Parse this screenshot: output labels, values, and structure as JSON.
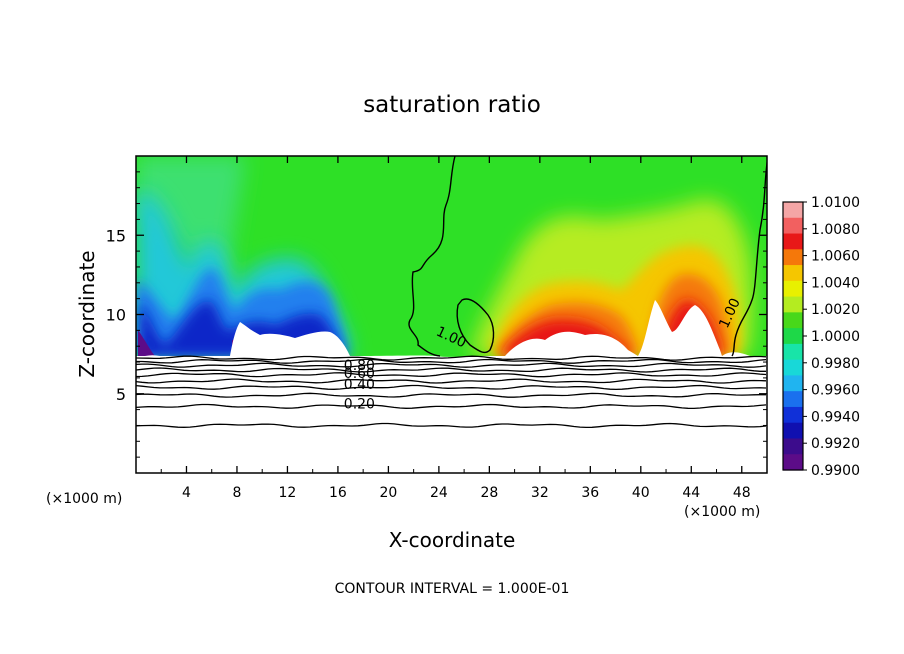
{
  "chart_data": {
    "type": "heatmap",
    "title": "saturation ratio",
    "xlabel": "X-coordinate",
    "ylabel": "Z-coordinate",
    "x_unit": "(×1000 m)",
    "z_unit": "(×1000 m)",
    "xlim": [
      0,
      50
    ],
    "ylim": [
      0,
      20
    ],
    "x_ticks": [
      4,
      8,
      12,
      16,
      20,
      24,
      28,
      32,
      36,
      40,
      44,
      48
    ],
    "y_ticks": [
      5,
      10,
      15
    ],
    "footer": "CONTOUR INTERVAL = 1.000E-01",
    "colorbar": {
      "min": 0.99,
      "max": 1.01,
      "labels": [
        "1.0100",
        "1.0080",
        "1.0060",
        "1.0040",
        "1.0020",
        "1.0000",
        "0.9980",
        "0.9960",
        "0.9940",
        "0.9920",
        "0.9900"
      ],
      "colors": [
        "#f4a6a6",
        "#f26060",
        "#e81818",
        "#f5780a",
        "#f5c600",
        "#e8f000",
        "#b4ec20",
        "#48d81a",
        "#1ed848",
        "#18e4a8",
        "#18d8d8",
        "#20b4f0",
        "#1a70ee",
        "#1030d8",
        "#1010b0",
        "#3c0c8c",
        "#5c0c88"
      ]
    },
    "contour_labels": [
      {
        "text": "1.00",
        "x": 25,
        "z": 8.6
      },
      {
        "text": "1.00",
        "x": 47,
        "z": 10.1
      },
      {
        "text": "0.80",
        "x": 17.7,
        "z": 6.8
      },
      {
        "text": "0.60",
        "x": 17.7,
        "z": 6.3
      },
      {
        "text": "0.40",
        "x": 17.7,
        "z": 5.6
      },
      {
        "text": "0.20",
        "x": 17.7,
        "z": 4.4
      }
    ],
    "horizontal_contours_z": [
      3.0,
      4.2,
      4.9,
      5.4,
      5.8,
      6.2,
      6.5,
      6.8,
      7.05,
      7.25
    ],
    "cloud_base_z": 7.3,
    "fields": [
      {
        "label": "blue-dry",
        "x": 2,
        "z": 10,
        "value": 0.9935
      },
      {
        "label": "blue-dry",
        "x": 10,
        "z": 11,
        "value": 0.9925
      },
      {
        "label": "blue-dry",
        "x": 14.5,
        "z": 10.5,
        "value": 0.993
      },
      {
        "label": "green-saturated",
        "x": 21,
        "z": 14,
        "value": 1.0
      },
      {
        "label": "red-supersaturated",
        "x": 34,
        "z": 10,
        "value": 1.0065
      },
      {
        "label": "orange",
        "x": 44,
        "z": 12.5,
        "value": 1.004
      }
    ]
  }
}
